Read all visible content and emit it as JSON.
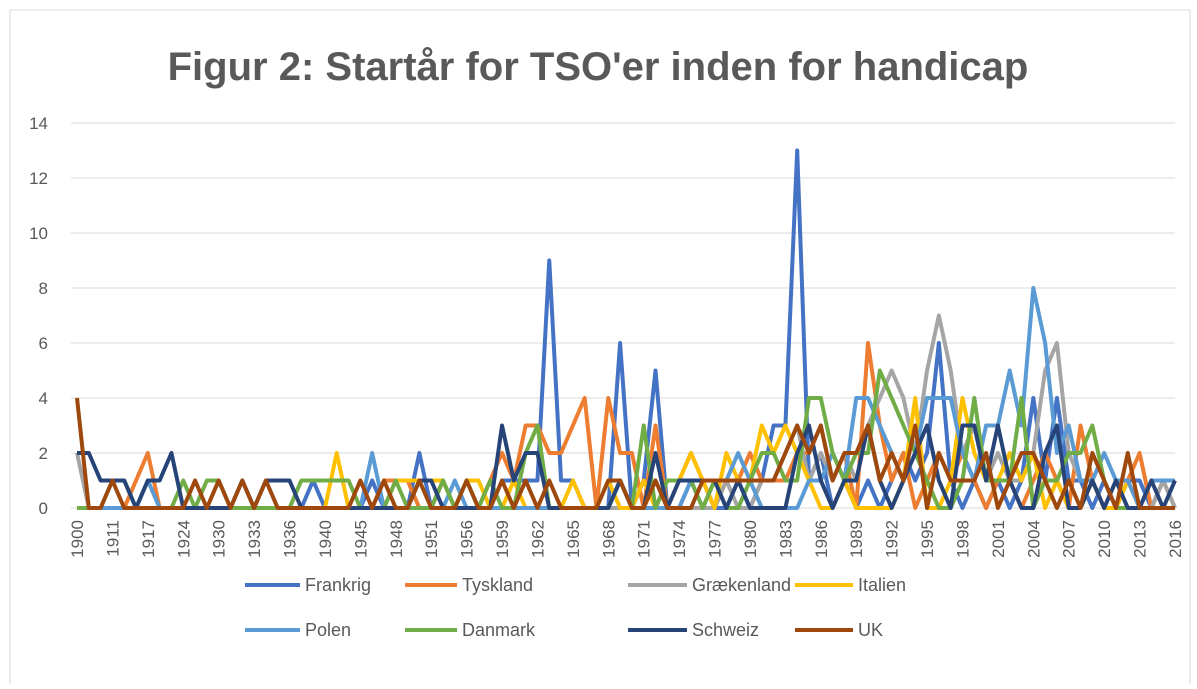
{
  "chart_data": {
    "type": "line",
    "title": "Figur 2: Startår for TSO'er inden for handicap",
    "categories": [
      "1900",
      null,
      null,
      "1911",
      null,
      null,
      "1917",
      null,
      null,
      "1924",
      null,
      null,
      "1930",
      null,
      null,
      "1933",
      null,
      null,
      "1936",
      null,
      null,
      "1940",
      null,
      null,
      "1945",
      null,
      null,
      "1948",
      null,
      null,
      "1951",
      null,
      null,
      "1956",
      null,
      null,
      "1959",
      null,
      null,
      "1962",
      null,
      null,
      "1965",
      null,
      null,
      "1968",
      null,
      null,
      "1971",
      null,
      null,
      "1974",
      null,
      null,
      "1977",
      null,
      null,
      "1980",
      null,
      null,
      "1983",
      null,
      null,
      "1986",
      null,
      null,
      "1989",
      null,
      null,
      "1992",
      null,
      null,
      "1995",
      null,
      null,
      "1998",
      null,
      null,
      "2001",
      null,
      null,
      "2004",
      null,
      null,
      "2007",
      null,
      null,
      "2010",
      null,
      null,
      "2013",
      null,
      null,
      "2016"
    ],
    "series": [
      {
        "name": "Frankrig",
        "color": "#4472c4",
        "values": [
          0,
          0,
          0,
          0,
          0,
          0,
          0,
          0,
          0,
          0,
          0,
          0,
          0,
          0,
          0,
          0,
          0,
          0,
          0,
          0,
          1,
          0,
          0,
          0,
          0,
          1,
          0,
          0,
          0,
          2,
          0,
          1,
          0,
          0,
          0,
          0,
          1,
          1,
          1,
          1,
          9,
          1,
          1,
          0,
          0,
          0,
          6,
          0,
          1,
          5,
          0,
          0,
          1,
          1,
          0,
          0,
          1,
          0,
          1,
          3,
          3,
          13,
          1,
          2,
          0,
          1,
          0,
          1,
          0,
          1,
          2,
          1,
          2,
          6,
          1,
          0,
          1,
          0,
          1,
          0,
          1,
          4,
          1,
          4,
          1,
          1,
          0,
          1,
          0,
          1,
          1,
          0,
          1,
          1
        ]
      },
      {
        "name": "Tyskland",
        "color": "#ed7d31",
        "values": [
          0,
          0,
          0,
          0,
          0,
          1,
          2,
          0,
          0,
          0,
          0,
          0,
          0,
          0,
          0,
          0,
          0,
          0,
          0,
          0,
          0,
          0,
          0,
          0,
          0,
          0,
          1,
          1,
          1,
          0,
          0,
          1,
          0,
          0,
          0,
          1,
          2,
          1,
          3,
          3,
          2,
          2,
          3,
          4,
          0,
          4,
          2,
          2,
          0,
          3,
          0,
          1,
          2,
          1,
          0,
          1,
          1,
          2,
          1,
          1,
          1,
          2,
          2,
          3,
          1,
          2,
          0,
          6,
          3,
          1,
          2,
          0,
          1,
          2,
          1,
          2,
          1,
          0,
          1,
          1,
          0,
          1,
          2,
          1,
          0,
          3,
          1,
          0,
          1,
          1,
          2,
          0,
          1,
          0
        ]
      },
      {
        "name": "Grækenland",
        "color": "#a5a5a5",
        "values": [
          2,
          0,
          0,
          0,
          0,
          0,
          0,
          0,
          0,
          0,
          0,
          0,
          0,
          0,
          0,
          0,
          0,
          0,
          0,
          0,
          0,
          0,
          0,
          0,
          0,
          0,
          0,
          0,
          0,
          0,
          0,
          0,
          0,
          0,
          0,
          0,
          0,
          0,
          0,
          0,
          0,
          0,
          0,
          0,
          0,
          0,
          0,
          0,
          0,
          0,
          0,
          0,
          0,
          0,
          0,
          1,
          0,
          0,
          1,
          1,
          2,
          3,
          1,
          2,
          1,
          2,
          1,
          3,
          4,
          5,
          4,
          2,
          5,
          7,
          5,
          2,
          3,
          1,
          2,
          1,
          1,
          2,
          5,
          6,
          2,
          1,
          1,
          0,
          1,
          0,
          0,
          0,
          1,
          0
        ]
      },
      {
        "name": "Italien",
        "color": "#ffc000",
        "values": [
          0,
          0,
          0,
          0,
          0,
          0,
          0,
          0,
          0,
          0,
          0,
          0,
          0,
          0,
          0,
          0,
          0,
          0,
          0,
          0,
          0,
          0,
          2,
          0,
          0,
          0,
          0,
          1,
          1,
          1,
          1,
          1,
          0,
          1,
          1,
          0,
          0,
          1,
          0,
          0,
          0,
          0,
          1,
          0,
          0,
          1,
          0,
          0,
          1,
          0,
          1,
          1,
          2,
          1,
          0,
          2,
          1,
          1,
          3,
          2,
          3,
          2,
          1,
          0,
          0,
          1,
          0,
          0,
          0,
          0,
          1,
          4,
          0,
          0,
          1,
          4,
          2,
          1,
          1,
          2,
          1,
          2,
          0,
          1,
          0,
          0,
          1,
          0,
          0,
          1,
          0,
          0,
          0,
          0
        ]
      },
      {
        "name": "Polen",
        "color": "#5b9bd5",
        "values": [
          0,
          0,
          0,
          0,
          0,
          0,
          1,
          0,
          0,
          0,
          0,
          0,
          0,
          0,
          0,
          0,
          0,
          0,
          0,
          0,
          0,
          0,
          0,
          0,
          0,
          2,
          0,
          0,
          0,
          0,
          0,
          0,
          1,
          0,
          0,
          0,
          0,
          0,
          0,
          0,
          0,
          0,
          0,
          0,
          0,
          0,
          1,
          0,
          0,
          0,
          0,
          0,
          1,
          0,
          1,
          1,
          2,
          1,
          0,
          0,
          0,
          0,
          1,
          1,
          2,
          1,
          4,
          4,
          3,
          2,
          1,
          2,
          4,
          4,
          4,
          2,
          1,
          3,
          3,
          5,
          3,
          8,
          6,
          2,
          3,
          1,
          1,
          2,
          1,
          1,
          0,
          1,
          1,
          1
        ]
      },
      {
        "name": "Danmark",
        "color": "#70ad47",
        "values": [
          0,
          0,
          0,
          1,
          1,
          0,
          0,
          0,
          0,
          1,
          0,
          1,
          1,
          0,
          0,
          0,
          0,
          0,
          0,
          1,
          1,
          1,
          1,
          1,
          0,
          0,
          0,
          1,
          0,
          0,
          0,
          1,
          0,
          1,
          0,
          1,
          0,
          0,
          2,
          3,
          0,
          0,
          0,
          0,
          0,
          0,
          1,
          0,
          3,
          0,
          1,
          1,
          1,
          0,
          1,
          0,
          0,
          1,
          2,
          2,
          1,
          1,
          4,
          4,
          2,
          1,
          2,
          2,
          5,
          4,
          3,
          2,
          1,
          0,
          0,
          1,
          4,
          1,
          1,
          1,
          4,
          0,
          1,
          1,
          2,
          2,
          3,
          1,
          0,
          0,
          0,
          0,
          0,
          0
        ]
      },
      {
        "name": "Schweiz",
        "color": "#264478",
        "values": [
          2,
          2,
          1,
          1,
          1,
          0,
          1,
          1,
          2,
          0,
          0,
          0,
          0,
          0,
          1,
          0,
          1,
          1,
          1,
          0,
          0,
          0,
          0,
          0,
          0,
          0,
          0,
          0,
          0,
          1,
          1,
          0,
          0,
          0,
          0,
          0,
          3,
          1,
          2,
          2,
          0,
          0,
          0,
          0,
          0,
          0,
          1,
          0,
          0,
          2,
          0,
          1,
          1,
          1,
          1,
          0,
          1,
          0,
          0,
          0,
          0,
          2,
          3,
          1,
          0,
          1,
          1,
          3,
          1,
          0,
          1,
          2,
          3,
          1,
          0,
          3,
          3,
          1,
          3,
          1,
          0,
          0,
          2,
          3,
          0,
          0,
          1,
          0,
          1,
          0,
          0,
          1,
          0,
          1
        ]
      },
      {
        "name": "UK",
        "color": "#9e480e",
        "values": [
          4,
          0,
          0,
          1,
          0,
          0,
          0,
          0,
          0,
          0,
          1,
          0,
          1,
          0,
          1,
          0,
          1,
          0,
          0,
          0,
          0,
          0,
          0,
          0,
          1,
          0,
          1,
          0,
          0,
          1,
          0,
          0,
          0,
          1,
          0,
          0,
          1,
          0,
          1,
          0,
          1,
          0,
          0,
          0,
          0,
          1,
          1,
          0,
          0,
          1,
          0,
          0,
          0,
          1,
          1,
          1,
          1,
          1,
          1,
          1,
          2,
          3,
          2,
          3,
          1,
          2,
          2,
          3,
          1,
          2,
          1,
          3,
          0,
          2,
          1,
          1,
          1,
          2,
          0,
          1,
          2,
          2,
          1,
          0,
          1,
          0,
          2,
          1,
          0,
          2,
          0,
          0,
          0,
          0
        ]
      }
    ],
    "ylim": [
      0,
      14
    ],
    "yticks": [
      0,
      2,
      4,
      6,
      8,
      10,
      12,
      14
    ],
    "grid": true,
    "legend": "bottom"
  }
}
